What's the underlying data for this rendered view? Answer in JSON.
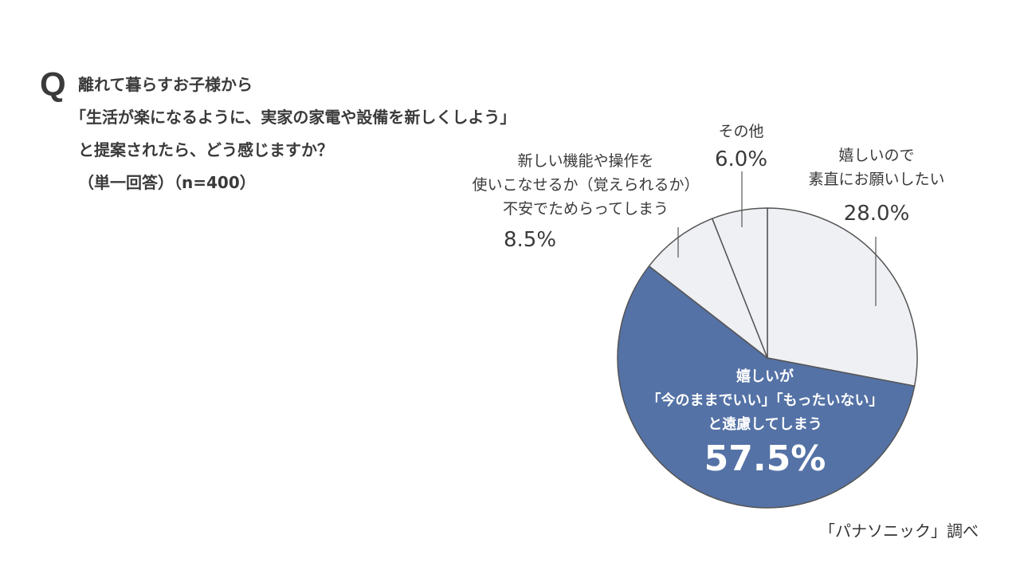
{
  "question": {
    "mark": "Q",
    "lines": [
      "離れて暮らすお子様から",
      "「生活が楽になるように、実家の家電や設備を新しくしよう」",
      "と提案されたら、どう感じますか？",
      "（単一回答）（n=400）"
    ]
  },
  "chart_data": {
    "type": "pie",
    "start_angle_deg": 0,
    "direction": "clockwise",
    "slices": [
      {
        "label_lines": [
          "嬉しいので",
          "素直にお願いしたい"
        ],
        "value": 28.0,
        "pct_text": "28.0%",
        "color": "#eef0f4"
      },
      {
        "label_lines": [
          "嬉しいが",
          "「今のままでいい」「もったいない」",
          "と遠慮してしまう"
        ],
        "value": 57.5,
        "pct_text": "57.5%",
        "color": "#5472a6"
      },
      {
        "label_lines": [
          "新しい機能や操作を",
          "使いこなせるか（覚えられるか）",
          "不安でためらってしまう"
        ],
        "value": 8.5,
        "pct_text": "8.5%",
        "color": "#eef0f4"
      },
      {
        "label_lines": [
          "その他"
        ],
        "value": 6.0,
        "pct_text": "6.0%",
        "color": "#eef0f4"
      }
    ],
    "stroke_color": "#555555"
  },
  "source": "「パナソニック」調べ"
}
